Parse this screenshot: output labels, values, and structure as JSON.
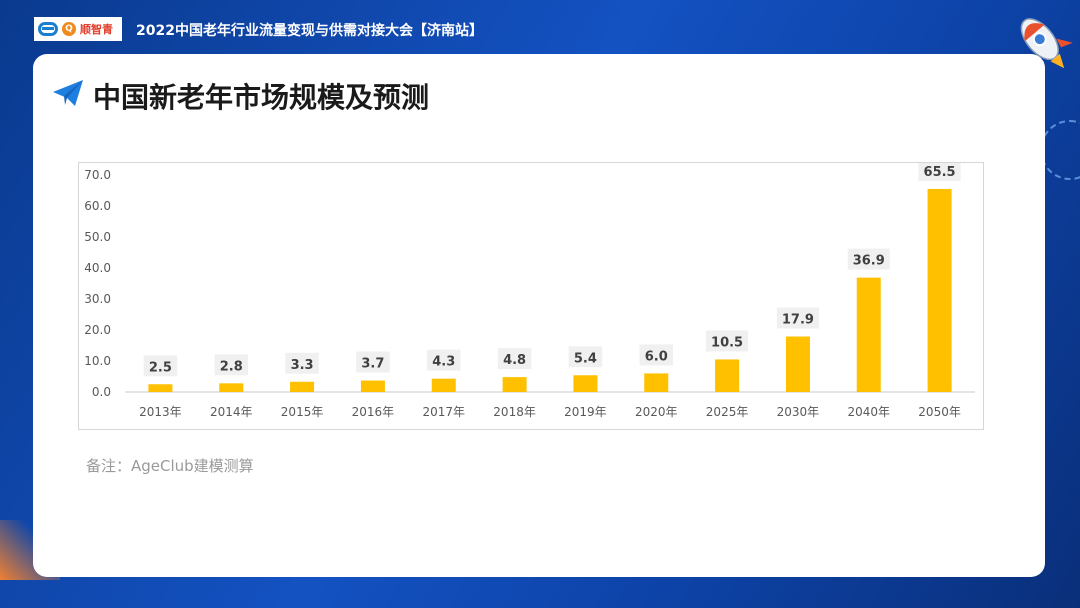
{
  "header": {
    "logo_text": "顺智青",
    "logo_q": "Q",
    "event_title": "2022中国老年行业流量变现与供需对接大会【济南站】"
  },
  "slide": {
    "title": "中国新老年市场规模及预测",
    "note": "备注：AgeClub建模测算"
  },
  "colors": {
    "bar": "#ffc000",
    "label_bg": "#f0f0f0",
    "axis_text": "#595959"
  },
  "chart_data": {
    "type": "bar",
    "title": "",
    "xlabel": "",
    "ylabel": "",
    "categories": [
      "2013年",
      "2014年",
      "2015年",
      "2016年",
      "2017年",
      "2018年",
      "2019年",
      "2020年",
      "2025年",
      "2030年",
      "2040年",
      "2050年"
    ],
    "values": [
      2.5,
      2.8,
      3.3,
      3.7,
      4.3,
      4.8,
      5.4,
      6.0,
      10.5,
      17.9,
      36.9,
      65.5
    ],
    "value_labels": [
      "2.5",
      "2.8",
      "3.3",
      "3.7",
      "4.3",
      "4.8",
      "5.4",
      "6.0",
      "10.5",
      "17.9",
      "36.9",
      "65.5"
    ],
    "yticks": [
      "0.0",
      "10.0",
      "20.0",
      "30.0",
      "40.0",
      "50.0",
      "60.0",
      "70.0"
    ],
    "ylim": [
      0,
      70
    ],
    "grid": false,
    "legend": "none"
  }
}
